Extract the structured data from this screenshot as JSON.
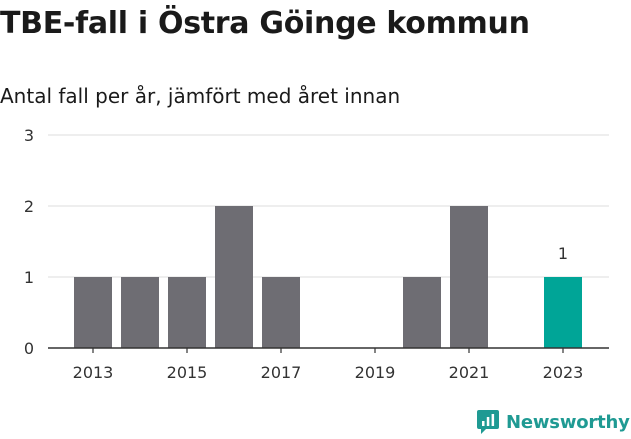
{
  "header": {
    "title": "TBE-fall i Östra Göinge kommun",
    "subtitle": "Antal fall per år, jämfört med året innan"
  },
  "brand": {
    "name": "Newsworthy"
  },
  "colors": {
    "bar": "#6e6d73",
    "highlight": "#00a597",
    "grid": "#dcdcdc",
    "axis": "#333333",
    "brand": "#1f9a93"
  },
  "chart_data": {
    "type": "bar",
    "title": "TBE-fall i Östra Göinge kommun",
    "subtitle": "Antal fall per år, jämfört med året innan",
    "categories": [
      "2013",
      "2014",
      "2015",
      "2016",
      "2017",
      "2018",
      "2019",
      "2020",
      "2021",
      "2022",
      "2023"
    ],
    "values": [
      1,
      1,
      1,
      2,
      1,
      0,
      0,
      1,
      2,
      0,
      1
    ],
    "x_tick_labels": [
      "2013",
      "2015",
      "2017",
      "2019",
      "2021",
      "2023"
    ],
    "y_ticks": [
      0,
      1,
      2,
      3
    ],
    "ylim": [
      0,
      3
    ],
    "highlight_category": "2023",
    "data_labels": [
      {
        "category": "2023",
        "value": "1"
      }
    ],
    "grid": true,
    "xlabel": "",
    "ylabel": ""
  }
}
